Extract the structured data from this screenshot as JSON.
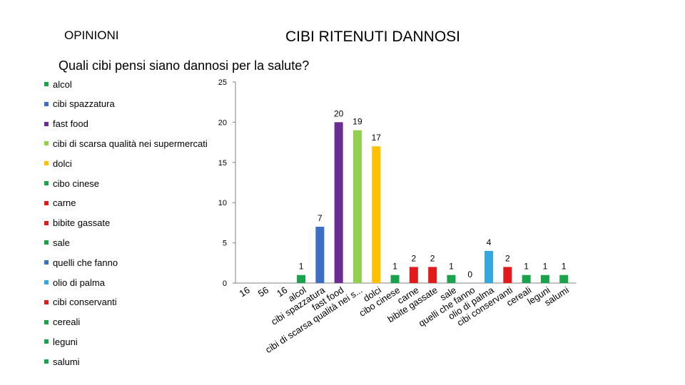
{
  "header": {
    "left_title": "OPINIONI",
    "right_title": "CIBI RITENUTI DANNOSI"
  },
  "chart_data": {
    "type": "bar",
    "title": "Quali cibi pensi siano dannosi per la salute?",
    "ylim": [
      0,
      25
    ],
    "yticks": [
      0,
      5,
      10,
      15,
      20,
      25
    ],
    "grid": false,
    "legend_position": "left",
    "categories": [
      "16",
      "56",
      "16",
      "alcol",
      "cibi spazzatura",
      "fast food",
      "cibi di scarsa qualità nei s...",
      "dolci",
      "cibo cinese",
      "carne",
      "bibite gassate",
      "sale",
      "quelli che fanno",
      "olio di palma",
      "cibi conservanti",
      "cereali",
      "leguni",
      "salumi"
    ],
    "values": [
      null,
      null,
      null,
      1,
      7,
      20,
      19,
      17,
      1,
      2,
      2,
      1,
      0,
      4,
      2,
      1,
      1,
      1
    ],
    "data_labels": [
      "",
      "",
      "",
      "1",
      "7",
      "20",
      "19",
      "17",
      "1",
      "2",
      "2",
      "1",
      "0",
      "4",
      "2",
      "1",
      "1",
      "1"
    ],
    "colors": [
      "",
      "",
      "",
      "#1aa34a",
      "#3b6fc4",
      "#6a2d91",
      "#92d050",
      "#ffc000",
      "#1aa34a",
      "#e31a1c",
      "#e31a1c",
      "#1aa34a",
      "#1aa34a",
      "#33a8e0",
      "#e31a1c",
      "#1aa34a",
      "#1aa34a",
      "#1aa34a"
    ],
    "legend": [
      {
        "label": "alcol",
        "color": "#1aa34a"
      },
      {
        "label": "cibi spazzatura",
        "color": "#3b6fc4"
      },
      {
        "label": "fast food",
        "color": "#6a2d91"
      },
      {
        "label": "cibi di scarsa qualità nei supermercati",
        "color": "#92d050"
      },
      {
        "label": "dolci",
        "color": "#ffc000"
      },
      {
        "label": "cibo cinese",
        "color": "#1aa34a"
      },
      {
        "label": "carne",
        "color": "#e31a1c"
      },
      {
        "label": "bibite gassate",
        "color": "#e31a1c"
      },
      {
        "label": "sale",
        "color": "#1aa34a"
      },
      {
        "label": "quelli che fanno",
        "color": "#3b6fc4"
      },
      {
        "label": "olio di palma",
        "color": "#33a8e0"
      },
      {
        "label": "cibi conservanti",
        "color": "#e31a1c"
      },
      {
        "label": "cereali",
        "color": "#1aa34a"
      },
      {
        "label": "leguni",
        "color": "#1aa34a"
      },
      {
        "label": "salumi",
        "color": "#1aa34a"
      }
    ]
  }
}
